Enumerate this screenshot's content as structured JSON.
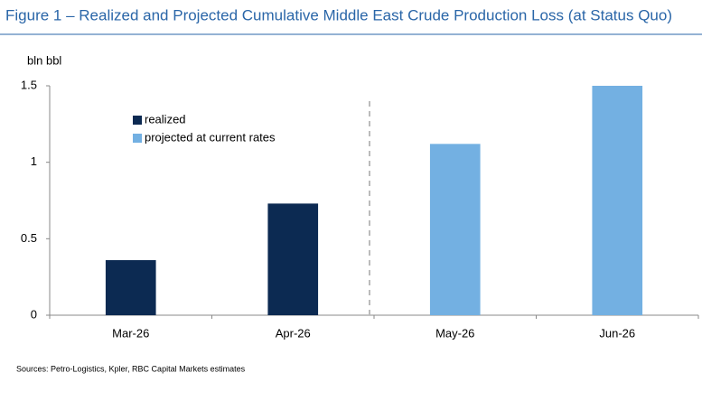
{
  "chart_data": {
    "type": "bar",
    "title": "Figure 1 – Realized and Projected Cumulative Middle East Crude Production Loss (at Status Quo)",
    "y_label": "bln bbl",
    "source": "Sources: Petro-Logistics, Kpler, RBC Capital Markets estimates",
    "categories": [
      "Mar-26",
      "Apr-26",
      "May-26",
      "Jun-26"
    ],
    "series": [
      {
        "name": "realized",
        "color": "#0c2a52",
        "values": [
          0.36,
          0.73,
          null,
          null
        ]
      },
      {
        "name": "projected at current rates",
        "color": "#73b0e2",
        "values": [
          null,
          null,
          1.12,
          1.5
        ]
      }
    ],
    "ylim": [
      0,
      1.5
    ],
    "yticks": [
      0,
      0.5,
      1,
      1.5
    ]
  }
}
